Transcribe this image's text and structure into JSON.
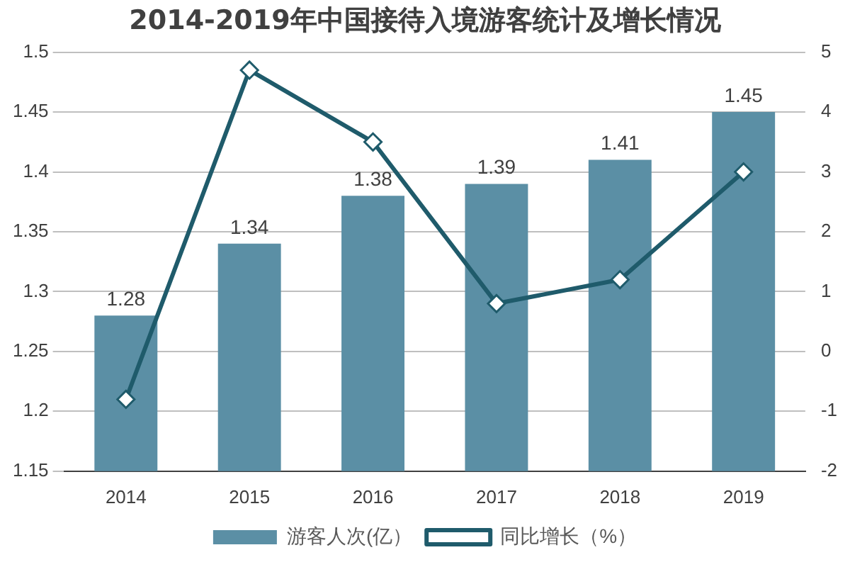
{
  "chart_data": {
    "type": "bar",
    "title": "2014-2019年中国接待入境游客统计及增长情况",
    "categories": [
      "2014",
      "2015",
      "2016",
      "2017",
      "2018",
      "2019"
    ],
    "series": [
      {
        "name": "游客人次(亿）",
        "color": "#5b8fa5",
        "values": [
          1.28,
          1.34,
          1.38,
          1.39,
          1.41,
          1.45
        ],
        "value_labels": [
          "1.28",
          "1.34",
          "1.38",
          "1.39",
          "1.41",
          "1.45"
        ]
      },
      {
        "name": "同比增长（%）",
        "type": "line",
        "axis": "y2",
        "color": "#1f5b6b",
        "values": [
          -0.8,
          4.7,
          3.5,
          0.8,
          1.2,
          3.0
        ]
      }
    ],
    "ylim": [
      1.15,
      1.5
    ],
    "yticks": [
      1.15,
      1.2,
      1.25,
      1.3,
      1.35,
      1.4,
      1.45,
      1.5
    ],
    "y2lim": [
      -2,
      5
    ],
    "y2ticks": [
      -2,
      -1,
      0,
      1,
      2,
      3,
      4,
      5
    ],
    "grid": "y",
    "legend": "bottom",
    "marker": "diamond"
  }
}
